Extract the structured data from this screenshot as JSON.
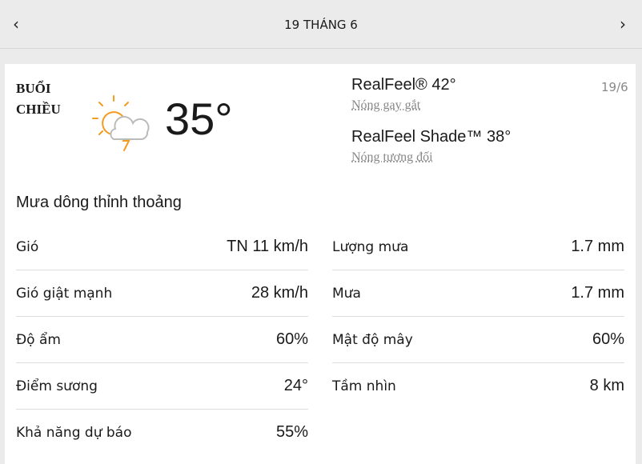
{
  "header": {
    "title": "19 THÁNG 6",
    "prev": "‹",
    "next": "›"
  },
  "card": {
    "period_line1": "BUỔI",
    "period_line2": "CHIỀU",
    "icon": "sun-cloud-thunder-icon",
    "temperature": "35°",
    "realfeel": "RealFeel® 42°",
    "realfeel_desc": "Nóng gay gắt",
    "realfeel_shade": "RealFeel Shade™ 38°",
    "realfeel_shade_desc": "Nóng tương đối",
    "date": "19/6",
    "phrase": "Mưa dông thỉnh thoảng"
  },
  "left": [
    {
      "label": "Gió",
      "value": "TN 11 km/h"
    },
    {
      "label": "Gió giật mạnh",
      "value": "28 km/h"
    },
    {
      "label": "Độ ẩm",
      "value": "60%"
    },
    {
      "label": "Điểm sương",
      "value": "24°"
    },
    {
      "label": "Khả năng dự báo",
      "value": "55%"
    }
  ],
  "right": [
    {
      "label": "Lượng mưa",
      "value": "1.7 mm"
    },
    {
      "label": "Mưa",
      "value": "1.7 mm"
    },
    {
      "label": "Mật độ mây",
      "value": "60%"
    },
    {
      "label": "Tầm nhìn",
      "value": "8 km"
    }
  ]
}
